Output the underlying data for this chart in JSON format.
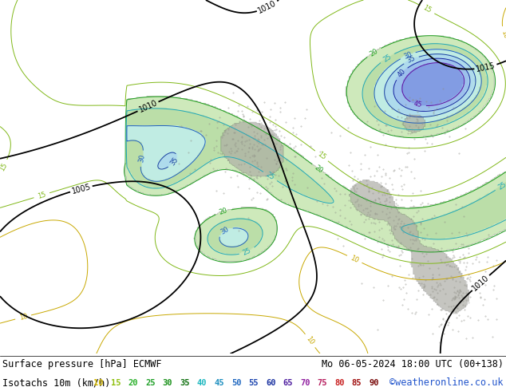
{
  "title_left": "Surface pressure [hPa] ECMWF",
  "title_right": "Mo 06-05-2024 18:00 UTC (00+138)",
  "subtitle_left": "Isotachs 10m (km/h)",
  "subtitle_right": "©weatheronline.co.uk",
  "legend_values": [
    10,
    15,
    20,
    25,
    30,
    35,
    40,
    45,
    50,
    55,
    60,
    65,
    70,
    75,
    80,
    85,
    90
  ],
  "legend_colors": [
    "#e8c840",
    "#c8d820",
    "#78c828",
    "#50b428",
    "#28a028",
    "#289628",
    "#28c8c8",
    "#28a0c8",
    "#2878c8",
    "#2850c8",
    "#2828c8",
    "#7828c8",
    "#c828a0",
    "#c82878",
    "#c82828",
    "#a01010",
    "#780808"
  ],
  "bg_color": "#e8e8e8",
  "land_green_color": "#c8e0b0",
  "terrain_color": "#b8b8b0",
  "title_fontsize": 8.5,
  "subtitle_fontsize": 8.5,
  "legend_fontsize": 7.5,
  "figsize": [
    6.34,
    4.9
  ],
  "dpi": 100
}
